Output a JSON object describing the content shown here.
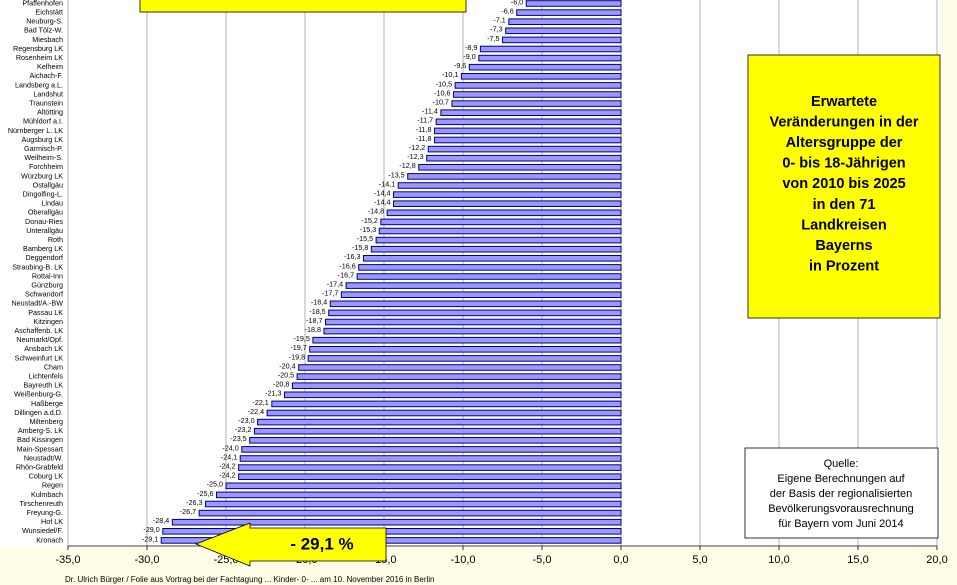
{
  "chart_data": {
    "type": "bar",
    "orientation": "horizontal",
    "title": [
      "Erwartete",
      "Veränderungen in der",
      "Altersgruppe der",
      "0- bis 18-Jährigen",
      "von 2010 bis 2025",
      "in den 71",
      "Landkreisen",
      "Bayerns",
      "in Prozent"
    ],
    "source": [
      "Quelle:",
      "Eigene Berechnungen auf",
      "der Basis der regionalisierten",
      "Bevölkerungsvorausrechnung",
      "für Bayern vom Juni 2014"
    ],
    "arrow_label": "- 29,1 %",
    "footer": "Dr. Ulrich Bürger / Folie aus Vortrag bei der Fachtagung ... Kinder- 0- ... am 10. November 2016 in Berlin",
    "categories": [
      "Pfaffenhofen",
      "Eichstätt",
      "Neuburg-S.",
      "Bad Tölz-W.",
      "Miesbach",
      "Regensburg LK",
      "Rosenheim LK",
      "Kelheim",
      "Aichach-F.",
      "Landsberg a.L.",
      "Landshut",
      "Traunstein",
      "Altötting",
      "Mühldorf a.I.",
      "Nürnberger L. LK",
      "Augsburg LK",
      "Garmisch-P.",
      "Weilheim-S.",
      "Forchheim",
      "Würzburg LK",
      "Ostallgäu",
      "Dingolfing-L.",
      "Lindau",
      "Oberallgäu",
      "Donau-Ries",
      "Unterallgäu",
      "Roth",
      "Bamberg LK",
      "Deggendorf",
      "Straubing-B. LK",
      "Rottal-Inn",
      "Günzburg",
      "Schwandorf",
      "Neustadt/A.-BW",
      "Passau LK",
      "Kitzingen",
      "Aschaffenb. LK",
      "Neumarkt/Opf.",
      "Ansbach LK",
      "Schweinfurt LK",
      "Cham",
      "Lichtenfels",
      "Bayreuth LK",
      "Weißenburg-G.",
      "Haßberge",
      "Dillingen a.d.D.",
      "Miltenberg",
      "Amberg-S. LK",
      "Bad Kissingen",
      "Main-Spessart",
      "Neustadt/W.",
      "Rhön-Grabfeld",
      "Coburg LK",
      "Regen",
      "Kulmbach",
      "Tirschenreuth",
      "Freyung-G.",
      "Hof LK",
      "Wunsiedel/F.",
      "Kronach"
    ],
    "values": [
      -6.0,
      -6.6,
      -7.1,
      -7.3,
      -7.5,
      -8.9,
      -9.0,
      -9.6,
      -10.1,
      -10.5,
      -10.6,
      -10.7,
      -11.4,
      -11.7,
      -11.8,
      -11.8,
      -12.2,
      -12.3,
      -12.8,
      -13.5,
      -14.1,
      -14.4,
      -14.4,
      -14.8,
      -15.2,
      -15.3,
      -15.5,
      -15.8,
      -16.3,
      -16.6,
      -16.7,
      -17.4,
      -17.7,
      -18.4,
      -18.5,
      -18.7,
      -18.8,
      -19.5,
      -19.7,
      -19.8,
      -20.4,
      -20.5,
      -20.8,
      -21.3,
      -22.1,
      -22.4,
      -23.0,
      -23.2,
      -23.5,
      -24.0,
      -24.1,
      -24.2,
      -24.2,
      -25.0,
      -25.6,
      -26.3,
      -26.7,
      -28.4,
      -29.0,
      -29.1
    ],
    "value_labels": [
      "-6,0",
      "-6,6",
      "-7,1",
      "-7,3",
      "-7,5",
      "-8,9",
      "-9,0",
      "-9,6",
      "-10,1",
      "-10,5",
      "-10,6",
      "-10,7",
      "-11,4",
      "-11,7",
      "-11,8",
      "-11,8",
      "-12,2",
      "-12,3",
      "-12,8",
      "-13,5",
      "-14,1",
      "-14,4",
      "-14,4",
      "-14,8",
      "-15,2",
      "-15,3",
      "-15,5",
      "-15,8",
      "-16,3",
      "-16,6",
      "-16,7",
      "-17,4",
      "-17,7",
      "-18,4",
      "-18,5",
      "-18,7",
      "-18,8",
      "-19,5",
      "-19,7",
      "-19,8",
      "-20,4",
      "-20,5",
      "-20,8",
      "-21,3",
      "-22,1",
      "-22,4",
      "-23,0",
      "-23,2",
      "-23,5",
      "-24,0",
      "-24,1",
      "-24,2",
      "-24,2",
      "-25,0",
      "-25,6",
      "-26,3",
      "-26,7",
      "-28,4",
      "-29,0",
      "-29,1"
    ],
    "color": "#9999ff",
    "edge_color": "#000080",
    "xlim": [
      -35,
      20
    ],
    "xticks": [
      {
        "value": -35,
        "label": "-35,0"
      },
      {
        "value": -30,
        "label": "-30,0"
      },
      {
        "value": -25,
        "label": "-25,0"
      },
      {
        "value": -20,
        "label": "-20,0"
      },
      {
        "value": -15,
        "label": "-15,0"
      },
      {
        "value": -10,
        "label": "-10,0"
      },
      {
        "value": -5,
        "label": "-5,0"
      },
      {
        "value": 0,
        "label": "0,0"
      },
      {
        "value": 5,
        "label": "5,0"
      },
      {
        "value": 10,
        "label": "10,0"
      },
      {
        "value": 15,
        "label": "15,0"
      },
      {
        "value": 20,
        "label": "20,0"
      }
    ],
    "grid": true
  }
}
